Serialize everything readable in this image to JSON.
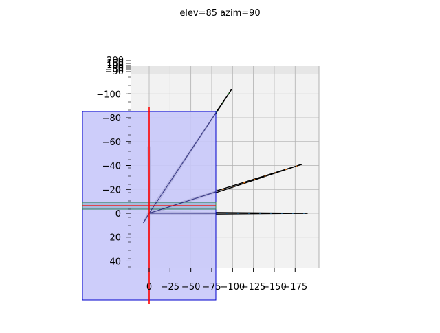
{
  "chart_data": {
    "type": "line",
    "projection": "3d",
    "title": "elev=85 azim=90",
    "view": {
      "elev": 85,
      "azim": 90
    },
    "xlabel": "",
    "ylabel": "",
    "zlabel": "",
    "x_axis": {
      "ticks": [
        0,
        -25,
        -50,
        -75,
        -100,
        -125,
        -150,
        -175
      ],
      "tick_labels": [
        "0",
        "−25",
        "−50",
        "−75",
        "−100",
        "−125",
        "−150",
        "−175"
      ]
    },
    "y_axis": {
      "ticks": [
        -100,
        -80,
        -60,
        -40,
        -20,
        0,
        20,
        40
      ],
      "tick_labels": [
        "−100",
        "−80",
        "−60",
        "−40",
        "−20",
        "0",
        "20",
        "40"
      ]
    },
    "z_axis": {
      "tick_labels": [
        "200",
        "150",
        "100",
        "50",
        "0",
        "−50",
        "−90"
      ]
    },
    "grid": true,
    "legend": "none",
    "series": [
      {
        "color": "#1f77b4",
        "from": [
          0,
          0
        ],
        "to": [
          -190,
          0
        ]
      },
      {
        "color": "#ff7f0e",
        "from": [
          0,
          0
        ],
        "to": [
          -183,
          -41
        ]
      },
      {
        "color": "#2ca02c",
        "from": [
          0,
          0
        ],
        "to": [
          -99,
          -104
        ]
      },
      {
        "color": "#d62728",
        "from": [
          0,
          -56
        ],
        "to": [
          0,
          32
        ]
      },
      {
        "color": "#9467bd",
        "from": [
          0,
          0
        ],
        "to": [
          7,
          8
        ]
      }
    ],
    "overlays": {
      "vertical_line_color": "#ff0000",
      "horizontal_line_color": "#ff0000",
      "large_box_fill": "#c8c8fa",
      "large_box_edge": "#0000cc",
      "thin_box_edge": "#2e7d5b"
    }
  }
}
